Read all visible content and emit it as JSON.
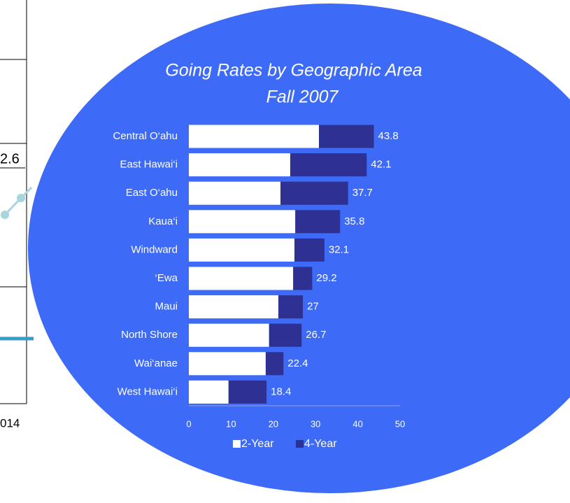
{
  "chart_data": {
    "type": "stacked-barh",
    "title": [
      "Going Rates by Geographic Area",
      "Fall 2007"
    ],
    "categories": [
      "Central O‘ahu",
      "East Hawai‘i",
      "East O‘ahu",
      "Kaua‘i",
      "Windward",
      "‘Ewa",
      "Maui",
      "North Shore",
      "Wai‘anae",
      "West Hawai‘i"
    ],
    "series": [
      {
        "name": "2-Year",
        "color": "#ffffff",
        "values": [
          30.8,
          24.0,
          21.7,
          25.2,
          25.0,
          24.7,
          21.2,
          19.0,
          18.2,
          9.4
        ]
      },
      {
        "name": "4-Year",
        "color": "#2e3192",
        "values": [
          13.0,
          18.1,
          16.0,
          10.6,
          7.1,
          4.5,
          5.8,
          7.7,
          4.2,
          9.0
        ]
      }
    ],
    "totals": [
      43.8,
      42.1,
      37.7,
      35.8,
      32.1,
      29.2,
      27,
      26.7,
      22.4,
      18.4
    ],
    "xlim": [
      0,
      50
    ],
    "xticks": [
      0,
      10,
      20,
      30,
      40,
      50
    ],
    "legend": "bottom",
    "background": "#3d6bf7"
  },
  "fragments": {
    "labels": [
      "2.6",
      "014"
    ]
  }
}
